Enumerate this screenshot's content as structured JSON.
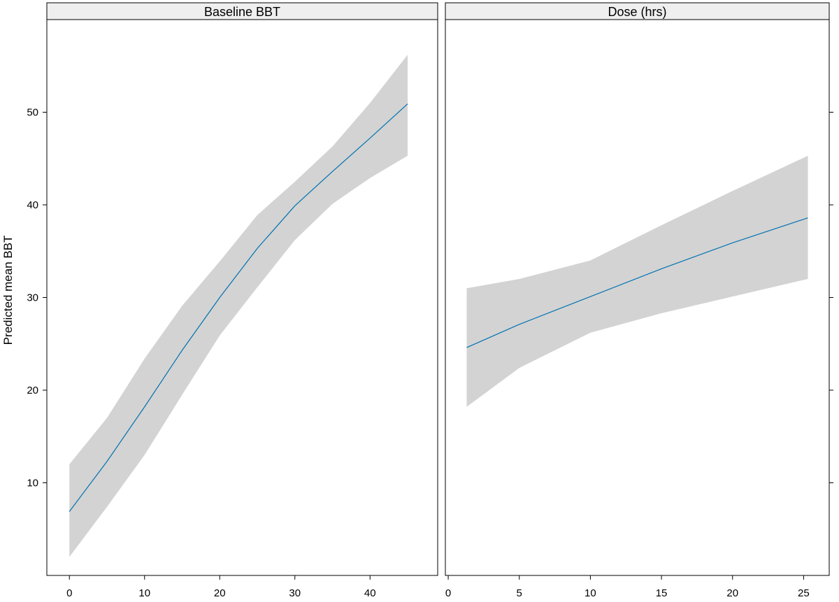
{
  "chart_data": {
    "type": "line",
    "ylabel": "Predicted mean BBT",
    "ylim": [
      0,
      60
    ],
    "yticks": [
      10,
      20,
      30,
      40,
      50
    ],
    "colors": {
      "line": "#0072B2",
      "band": "#d3d3d3",
      "strip": "#efefef",
      "axis": "#000000"
    },
    "panels": [
      {
        "title": "Baseline BBT",
        "xlim": [
          -3,
          49
        ],
        "xticks": [
          0,
          10,
          20,
          30,
          40
        ],
        "series": [
          {
            "x": [
              0,
              5,
              10,
              15,
              20,
              25,
              30,
              35,
              40,
              45
            ],
            "y": [
              6.9,
              12.3,
              18.2,
              24.3,
              30.0,
              35.3,
              39.9,
              43.6,
              47.2,
              50.9
            ],
            "lower": [
              2.0,
              7.4,
              13.0,
              19.5,
              25.9,
              31.1,
              36.2,
              40.1,
              42.9,
              45.3
            ],
            "upper": [
              12.0,
              17.0,
              23.4,
              29.1,
              33.9,
              38.9,
              42.5,
              46.3,
              51.0,
              56.2
            ]
          }
        ]
      },
      {
        "title": "Dose (hrs)",
        "xlim": [
          -0.2,
          26.8
        ],
        "xticks": [
          0,
          5,
          10,
          15,
          20,
          25
        ],
        "series": [
          {
            "x": [
              1.3,
              5,
              10,
              15,
              20,
              25.3
            ],
            "y": [
              24.6,
              27.1,
              30.1,
              33.1,
              35.9,
              38.6
            ],
            "lower": [
              18.2,
              22.4,
              26.2,
              28.3,
              30.1,
              32.0
            ],
            "upper": [
              31.0,
              32.0,
              34.0,
              37.8,
              41.5,
              45.3
            ]
          }
        ]
      }
    ]
  }
}
